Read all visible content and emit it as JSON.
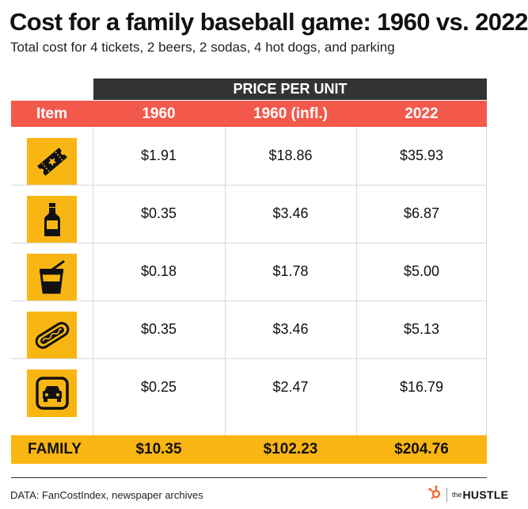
{
  "header": {
    "title": "Cost for a family baseball game: 1960 vs. 2022",
    "subtitle": "Total cost for 4 tickets, 2 beers, 2 sodas, 4 hot dogs, and parking"
  },
  "chart_data": {
    "type": "table",
    "group_header": "PRICE PER UNIT",
    "columns": [
      "Item",
      "1960",
      "1960 (infl.)",
      "2022"
    ],
    "rows": [
      {
        "icon": "ticket-icon",
        "values": [
          "$1.91",
          "$18.86",
          "$35.93"
        ]
      },
      {
        "icon": "beer-bottle-icon",
        "values": [
          "$0.35",
          "$3.46",
          "$6.87"
        ]
      },
      {
        "icon": "soda-cup-icon",
        "values": [
          "$0.18",
          "$1.78",
          "$5.00"
        ]
      },
      {
        "icon": "hot-dog-icon",
        "values": [
          "$0.35",
          "$3.46",
          "$5.13"
        ]
      },
      {
        "icon": "parking-car-icon",
        "values": [
          "$0.25",
          "$2.47",
          "$16.79"
        ]
      }
    ],
    "total": {
      "label": "FAMILY",
      "values": [
        "$10.35",
        "$102.23",
        "$204.76"
      ]
    }
  },
  "colors": {
    "header_red": "#f2594b",
    "accent_yellow": "#f9b613",
    "banner_dark": "#333333"
  },
  "footer": {
    "source": "DATA: FanCostIndex, newspaper archives",
    "brand_the": "the",
    "brand_name": "HUSTLE"
  }
}
